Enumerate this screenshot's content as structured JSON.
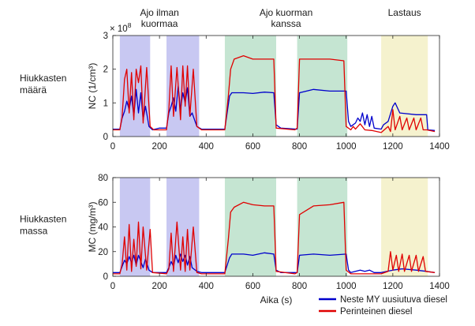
{
  "chart_data": [
    {
      "type": "line",
      "ylabel": "NC (1/cm³)",
      "row_label": [
        "Hiukkasten",
        "määrä"
      ],
      "exponent_label": "× 10^8",
      "xlabel": "",
      "xlim": [
        0,
        1400
      ],
      "ylim": [
        0,
        3
      ],
      "yticks": [
        "0",
        "1",
        "2",
        "3"
      ],
      "xticks": [
        "0",
        "200",
        "400",
        "600",
        "800",
        "1000",
        "1200",
        "1400"
      ],
      "series": [
        {
          "name": "Neste MY uusiutuva diesel",
          "color": "#0000cc",
          "points": [
            [
              0,
              0.22
            ],
            [
              30,
              0.22
            ],
            [
              40,
              0.55
            ],
            [
              50,
              0.75
            ],
            [
              60,
              1.05
            ],
            [
              70,
              0.8
            ],
            [
              80,
              1.2
            ],
            [
              90,
              0.6
            ],
            [
              100,
              1.4
            ],
            [
              110,
              0.7
            ],
            [
              120,
              1.3
            ],
            [
              130,
              0.5
            ],
            [
              140,
              0.9
            ],
            [
              155,
              0.3
            ],
            [
              170,
              0.2
            ],
            [
              200,
              0.25
            ],
            [
              230,
              0.25
            ],
            [
              240,
              0.7
            ],
            [
              250,
              0.9
            ],
            [
              260,
              1.15
            ],
            [
              270,
              0.75
            ],
            [
              280,
              1.5
            ],
            [
              290,
              0.8
            ],
            [
              300,
              1.3
            ],
            [
              310,
              1.0
            ],
            [
              320,
              1.45
            ],
            [
              330,
              0.6
            ],
            [
              340,
              0.7
            ],
            [
              360,
              0.3
            ],
            [
              380,
              0.22
            ],
            [
              480,
              0.22
            ],
            [
              500,
              1.2
            ],
            [
              510,
              1.3
            ],
            [
              560,
              1.3
            ],
            [
              600,
              1.28
            ],
            [
              650,
              1.32
            ],
            [
              690,
              1.3
            ],
            [
              700,
              0.35
            ],
            [
              720,
              0.25
            ],
            [
              790,
              0.22
            ],
            [
              800,
              1.3
            ],
            [
              860,
              1.4
            ],
            [
              930,
              1.35
            ],
            [
              1000,
              1.35
            ],
            [
              1010,
              0.45
            ],
            [
              1020,
              0.3
            ],
            [
              1040,
              0.4
            ],
            [
              1050,
              0.55
            ],
            [
              1060,
              0.45
            ],
            [
              1070,
              0.7
            ],
            [
              1080,
              0.35
            ],
            [
              1090,
              0.65
            ],
            [
              1100,
              0.3
            ],
            [
              1110,
              0.6
            ],
            [
              1120,
              0.25
            ],
            [
              1150,
              0.22
            ],
            [
              1160,
              0.35
            ],
            [
              1180,
              0.45
            ],
            [
              1200,
              0.9
            ],
            [
              1210,
              1.0
            ],
            [
              1230,
              0.7
            ],
            [
              1300,
              0.65
            ],
            [
              1345,
              0.65
            ],
            [
              1350,
              0.2
            ],
            [
              1380,
              0.18
            ]
          ]
        },
        {
          "name": "Perinteinen diesel",
          "color": "#e00000",
          "points": [
            [
              0,
              0.2
            ],
            [
              30,
              0.2
            ],
            [
              40,
              0.6
            ],
            [
              50,
              1.7
            ],
            [
              60,
              2.0
            ],
            [
              70,
              0.7
            ],
            [
              80,
              1.9
            ],
            [
              90,
              0.5
            ],
            [
              100,
              2.0
            ],
            [
              110,
              1.6
            ],
            [
              120,
              2.1
            ],
            [
              130,
              0.4
            ],
            [
              145,
              2.05
            ],
            [
              160,
              0.3
            ],
            [
              175,
              0.2
            ],
            [
              230,
              0.2
            ],
            [
              240,
              0.8
            ],
            [
              250,
              2.1
            ],
            [
              260,
              0.6
            ],
            [
              275,
              2.05
            ],
            [
              290,
              0.5
            ],
            [
              300,
              2.1
            ],
            [
              310,
              0.9
            ],
            [
              320,
              2.1
            ],
            [
              330,
              0.6
            ],
            [
              345,
              2.0
            ],
            [
              360,
              0.3
            ],
            [
              380,
              0.2
            ],
            [
              480,
              0.2
            ],
            [
              495,
              1.2
            ],
            [
              505,
              2.0
            ],
            [
              520,
              2.3
            ],
            [
              560,
              2.4
            ],
            [
              600,
              2.3
            ],
            [
              650,
              2.3
            ],
            [
              690,
              2.3
            ],
            [
              700,
              0.25
            ],
            [
              780,
              0.2
            ],
            [
              790,
              0.25
            ],
            [
              800,
              2.3
            ],
            [
              860,
              2.3
            ],
            [
              930,
              2.3
            ],
            [
              990,
              2.25
            ],
            [
              1000,
              0.3
            ],
            [
              1020,
              0.2
            ],
            [
              1030,
              0.3
            ],
            [
              1040,
              0.22
            ],
            [
              1060,
              0.38
            ],
            [
              1080,
              0.2
            ],
            [
              1110,
              0.18
            ],
            [
              1150,
              0.12
            ],
            [
              1180,
              0.3
            ],
            [
              1190,
              0.15
            ],
            [
              1200,
              0.8
            ],
            [
              1210,
              0.2
            ],
            [
              1230,
              0.6
            ],
            [
              1240,
              0.2
            ],
            [
              1260,
              0.55
            ],
            [
              1270,
              0.2
            ],
            [
              1290,
              0.55
            ],
            [
              1300,
              0.2
            ],
            [
              1320,
              0.55
            ],
            [
              1330,
              0.2
            ],
            [
              1345,
              0.2
            ],
            [
              1380,
              0.15
            ]
          ]
        }
      ]
    },
    {
      "type": "line",
      "ylabel": "MC (mg/m³)",
      "row_label": [
        "Hiukkasten",
        "massa"
      ],
      "xlabel": "Aika (s)",
      "xlim": [
        0,
        1400
      ],
      "ylim": [
        0,
        80
      ],
      "yticks": [
        "0",
        "20",
        "40",
        "60",
        "80"
      ],
      "xticks": [
        "0",
        "200",
        "400",
        "600",
        "800",
        "1000",
        "1200",
        "1400"
      ],
      "series": [
        {
          "name": "Neste MY uusiutuva diesel",
          "color": "#0000cc",
          "points": [
            [
              0,
              3
            ],
            [
              30,
              3
            ],
            [
              40,
              8
            ],
            [
              50,
              13
            ],
            [
              60,
              10
            ],
            [
              70,
              16
            ],
            [
              80,
              11
            ],
            [
              90,
              17
            ],
            [
              100,
              9
            ],
            [
              110,
              17
            ],
            [
              120,
              12
            ],
            [
              130,
              7
            ],
            [
              140,
              14
            ],
            [
              155,
              5
            ],
            [
              170,
              3
            ],
            [
              230,
              3
            ],
            [
              240,
              7
            ],
            [
              250,
              12
            ],
            [
              260,
              8
            ],
            [
              270,
              17
            ],
            [
              280,
              11
            ],
            [
              290,
              18
            ],
            [
              300,
              12
            ],
            [
              310,
              17
            ],
            [
              320,
              9
            ],
            [
              330,
              16
            ],
            [
              340,
              7
            ],
            [
              360,
              4
            ],
            [
              380,
              3
            ],
            [
              480,
              3
            ],
            [
              500,
              15
            ],
            [
              510,
              18
            ],
            [
              560,
              18
            ],
            [
              600,
              17
            ],
            [
              650,
              19
            ],
            [
              690,
              18
            ],
            [
              700,
              5
            ],
            [
              720,
              3
            ],
            [
              790,
              3
            ],
            [
              800,
              17
            ],
            [
              860,
              18
            ],
            [
              930,
              17
            ],
            [
              1000,
              18
            ],
            [
              1010,
              5
            ],
            [
              1020,
              3
            ],
            [
              1040,
              4
            ],
            [
              1060,
              5
            ],
            [
              1080,
              4
            ],
            [
              1100,
              5
            ],
            [
              1120,
              3
            ],
            [
              1150,
              3
            ],
            [
              1200,
              5
            ],
            [
              1240,
              6
            ],
            [
              1300,
              5
            ],
            [
              1345,
              4
            ],
            [
              1380,
              3
            ]
          ]
        },
        {
          "name": "Perinteinen diesel",
          "color": "#e00000",
          "points": [
            [
              0,
              2
            ],
            [
              30,
              2
            ],
            [
              40,
              10
            ],
            [
              50,
              32
            ],
            [
              60,
              5
            ],
            [
              70,
              42
            ],
            [
              80,
              4
            ],
            [
              90,
              30
            ],
            [
              100,
              8
            ],
            [
              110,
              44
            ],
            [
              120,
              6
            ],
            [
              130,
              40
            ],
            [
              145,
              5
            ],
            [
              160,
              38
            ],
            [
              170,
              3
            ],
            [
              230,
              2
            ],
            [
              240,
              6
            ],
            [
              250,
              35
            ],
            [
              260,
              4
            ],
            [
              275,
              44
            ],
            [
              290,
              5
            ],
            [
              300,
              32
            ],
            [
              310,
              4
            ],
            [
              320,
              38
            ],
            [
              330,
              5
            ],
            [
              345,
              40
            ],
            [
              360,
              3
            ],
            [
              380,
              2
            ],
            [
              480,
              2
            ],
            [
              495,
              30
            ],
            [
              505,
              52
            ],
            [
              520,
              56
            ],
            [
              560,
              60
            ],
            [
              600,
              58
            ],
            [
              650,
              57
            ],
            [
              690,
              57
            ],
            [
              700,
              4
            ],
            [
              780,
              2
            ],
            [
              790,
              3
            ],
            [
              800,
              50
            ],
            [
              860,
              57
            ],
            [
              930,
              58
            ],
            [
              990,
              60
            ],
            [
              1000,
              5
            ],
            [
              1020,
              2
            ],
            [
              1150,
              2
            ],
            [
              1180,
              4
            ],
            [
              1190,
              20
            ],
            [
              1200,
              5
            ],
            [
              1215,
              17
            ],
            [
              1225,
              4
            ],
            [
              1240,
              18
            ],
            [
              1250,
              4
            ],
            [
              1270,
              17
            ],
            [
              1280,
              4
            ],
            [
              1300,
              17
            ],
            [
              1310,
              4
            ],
            [
              1330,
              16
            ],
            [
              1340,
              4
            ],
            [
              1380,
              3
            ]
          ]
        }
      ]
    }
  ],
  "bands": [
    {
      "label": [
        "Ajo ilman",
        "kuormaa"
      ],
      "color": "#7c7ce0",
      "ranges": [
        [
          30,
          160
        ],
        [
          230,
          370
        ]
      ]
    },
    {
      "label": [
        "Ajo kuorman",
        "kanssa"
      ],
      "color": "#74c294",
      "ranges": [
        [
          480,
          700
        ],
        [
          790,
          1005
        ]
      ]
    },
    {
      "label": [
        "Lastaus"
      ],
      "color": "#e6e08a",
      "ranges": [
        [
          1150,
          1350
        ]
      ]
    }
  ],
  "legend": [
    {
      "label": "Neste MY uusiutuva diesel",
      "color": "#0000cc"
    },
    {
      "label": "Perinteinen diesel",
      "color": "#e00000"
    }
  ]
}
